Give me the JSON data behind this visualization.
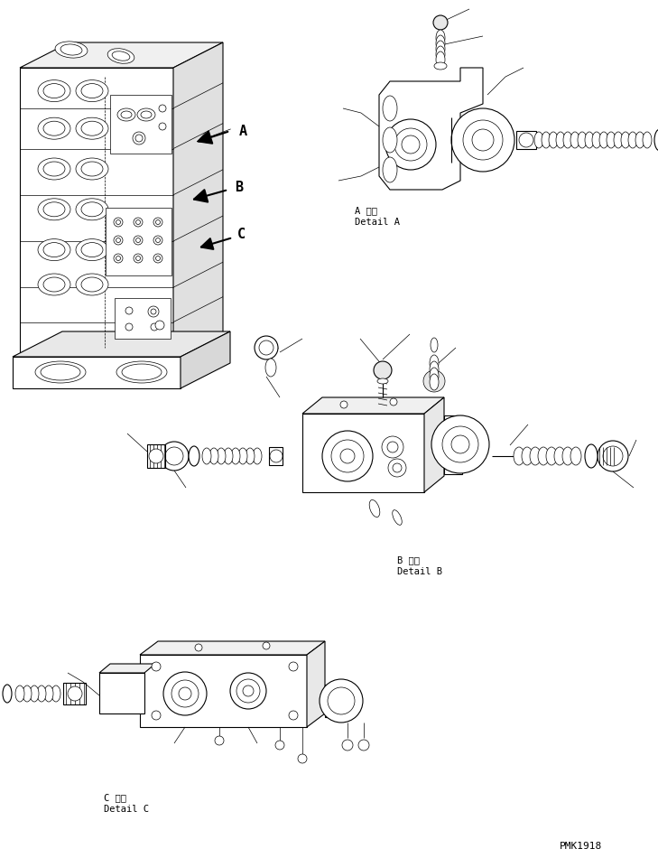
{
  "background_color": "#ffffff",
  "line_color": "#000000",
  "figure_width": 7.29,
  "figure_height": 9.5,
  "dpi": 100,
  "watermark": "PMK1918",
  "label_A_jp": "A 詳細",
  "label_A_en": "Detail A",
  "label_B_jp": "B 詳細",
  "label_B_en": "Detail B",
  "label_C_jp": "C 詳細",
  "label_C_en": "Detail C",
  "font_size_label": 7.5,
  "font_size_watermark": 8,
  "font_size_arrow_label": 11
}
